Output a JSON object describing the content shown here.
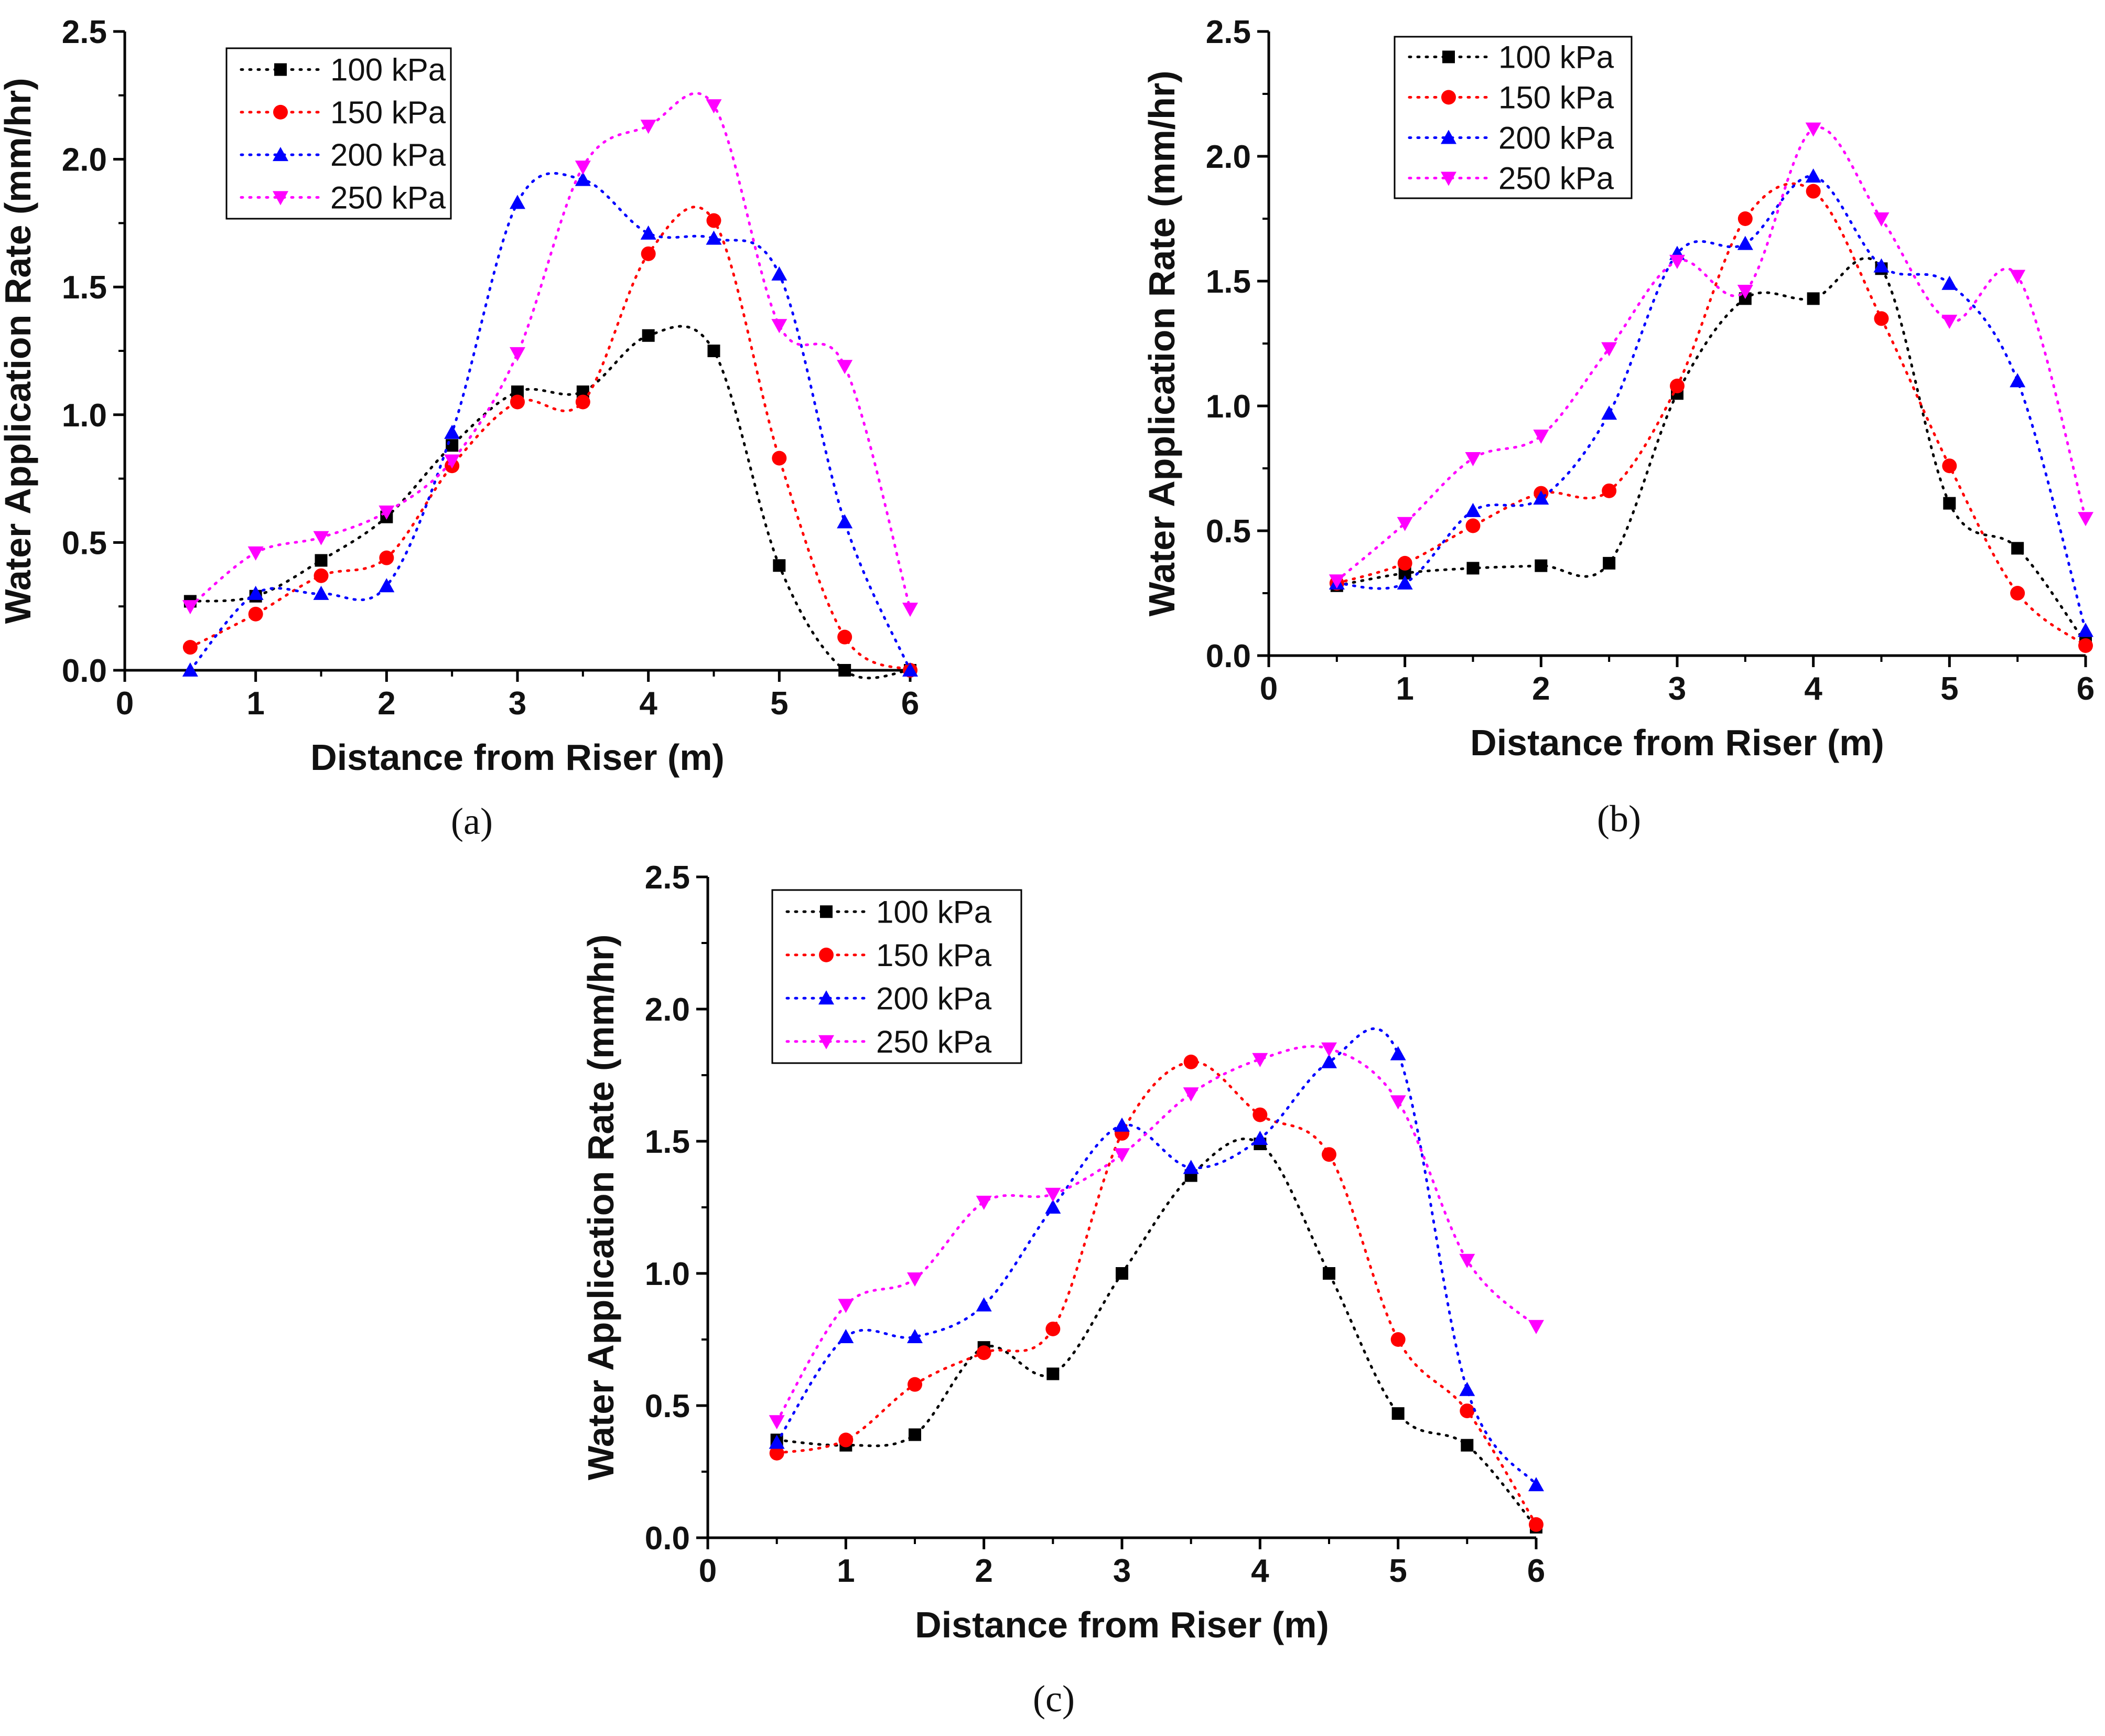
{
  "chart_data": [
    {
      "type": "line",
      "caption": "(a)",
      "xlabel": "Distance from Riser (m)",
      "ylabel": "Water Application Rate (mm/hr)",
      "xlim": [
        0,
        6
      ],
      "ylim": [
        0,
        2.5
      ],
      "xticks": [
        "0",
        "1",
        "2",
        "3",
        "4",
        "5",
        "6"
      ],
      "yticks": [
        "0.0",
        "0.5",
        "1.0",
        "1.5",
        "2.0",
        "2.5"
      ],
      "legend_position": "top-left",
      "x": [
        0.5,
        1,
        1.5,
        2,
        2.5,
        3,
        3.5,
        4,
        4.5,
        5,
        5.5,
        6
      ],
      "series": [
        {
          "name": "100 kPa",
          "color": "#000000",
          "marker": "square",
          "values": [
            0.27,
            0.29,
            0.43,
            0.6,
            0.88,
            1.09,
            1.09,
            1.31,
            1.25,
            0.41,
            0.0,
            0.0
          ]
        },
        {
          "name": "150 kPa",
          "color": "#ff0000",
          "marker": "circle",
          "values": [
            0.09,
            0.22,
            0.37,
            0.44,
            0.8,
            1.05,
            1.05,
            1.63,
            1.76,
            0.83,
            0.13,
            0.0
          ]
        },
        {
          "name": "200 kPa",
          "color": "#0000ff",
          "marker": "triangle-up",
          "values": [
            0.0,
            0.3,
            0.3,
            0.33,
            0.93,
            1.83,
            1.92,
            1.71,
            1.69,
            1.55,
            0.58,
            0.0
          ]
        },
        {
          "name": "250 kPa",
          "color": "#ff00ff",
          "marker": "triangle-down",
          "values": [
            0.25,
            0.46,
            0.52,
            0.62,
            0.82,
            1.24,
            1.97,
            2.13,
            2.21,
            1.35,
            1.19,
            0.24
          ]
        }
      ]
    },
    {
      "type": "line",
      "caption": "(b)",
      "xlabel": "Distance from Riser (m)",
      "ylabel": "Water Application Rate (mm/hr)",
      "xlim": [
        0,
        6
      ],
      "ylim": [
        0,
        2.5
      ],
      "xticks": [
        "0",
        "1",
        "2",
        "3",
        "4",
        "5",
        "6"
      ],
      "yticks": [
        "0.0",
        "0.5",
        "1.0",
        "1.5",
        "2.0",
        "2.5"
      ],
      "legend_position": "top-left",
      "x": [
        0.5,
        1,
        1.5,
        2,
        2.5,
        3,
        3.5,
        4,
        4.5,
        5,
        5.5,
        6
      ],
      "series": [
        {
          "name": "100 kPa",
          "color": "#000000",
          "marker": "square",
          "values": [
            0.28,
            0.33,
            0.35,
            0.36,
            0.37,
            1.05,
            1.43,
            1.43,
            1.55,
            0.61,
            0.43,
            0.05
          ]
        },
        {
          "name": "150 kPa",
          "color": "#ff0000",
          "marker": "circle",
          "values": [
            0.29,
            0.37,
            0.52,
            0.65,
            0.66,
            1.08,
            1.75,
            1.86,
            1.35,
            0.76,
            0.25,
            0.04
          ]
        },
        {
          "name": "200 kPa",
          "color": "#0000ff",
          "marker": "triangle-up",
          "values": [
            0.29,
            0.29,
            0.58,
            0.63,
            0.97,
            1.61,
            1.65,
            1.92,
            1.56,
            1.49,
            1.1,
            0.1
          ]
        },
        {
          "name": "250 kPa",
          "color": "#ff00ff",
          "marker": "triangle-down",
          "values": [
            0.3,
            0.53,
            0.79,
            0.88,
            1.23,
            1.58,
            1.46,
            2.11,
            1.75,
            1.34,
            1.52,
            0.55
          ]
        }
      ]
    },
    {
      "type": "line",
      "caption": "(c)",
      "xlabel": "Distance from Riser (m)",
      "ylabel": "Water Application Rate (mm/hr)",
      "xlim": [
        0,
        6
      ],
      "ylim": [
        0,
        2.5
      ],
      "xticks": [
        "0",
        "1",
        "2",
        "3",
        "4",
        "5",
        "6"
      ],
      "yticks": [
        "0.0",
        "0.5",
        "1.0",
        "1.5",
        "2.0",
        "2.5"
      ],
      "legend_position": "top-left",
      "x": [
        0.5,
        1,
        1.5,
        2,
        2.5,
        3,
        3.5,
        4,
        4.5,
        5,
        5.5,
        6
      ],
      "series": [
        {
          "name": "100 kPa",
          "color": "#000000",
          "marker": "square",
          "values": [
            0.37,
            0.35,
            0.39,
            0.72,
            0.62,
            1.0,
            1.37,
            1.49,
            1.0,
            0.47,
            0.35,
            0.04
          ]
        },
        {
          "name": "150 kPa",
          "color": "#ff0000",
          "marker": "circle",
          "values": [
            0.32,
            0.37,
            0.58,
            0.7,
            0.79,
            1.53,
            1.8,
            1.6,
            1.45,
            0.75,
            0.48,
            0.05
          ]
        },
        {
          "name": "200 kPa",
          "color": "#0000ff",
          "marker": "triangle-up",
          "values": [
            0.36,
            0.76,
            0.76,
            0.88,
            1.25,
            1.56,
            1.4,
            1.51,
            1.8,
            1.83,
            0.56,
            0.2
          ]
        },
        {
          "name": "250 kPa",
          "color": "#ff00ff",
          "marker": "triangle-down",
          "values": [
            0.44,
            0.88,
            0.98,
            1.27,
            1.3,
            1.45,
            1.68,
            1.81,
            1.85,
            1.65,
            1.05,
            0.8
          ]
        }
      ]
    }
  ]
}
